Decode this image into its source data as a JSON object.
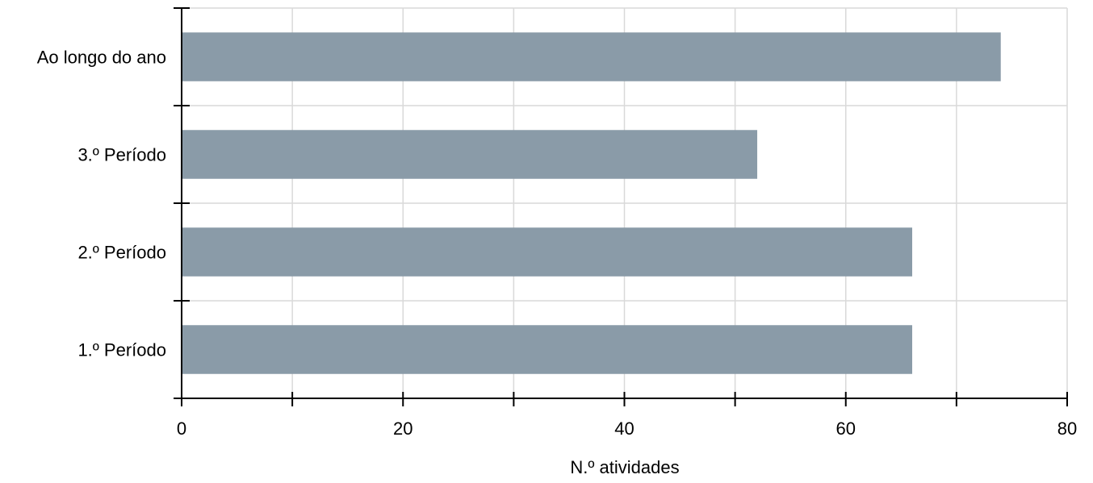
{
  "chart_data": {
    "type": "bar",
    "orientation": "horizontal",
    "categories": [
      "1.º Período",
      "2.º Período",
      "3.º Período",
      "Ao longo do ano"
    ],
    "values": [
      66,
      66,
      52,
      74
    ],
    "xlabel": "N.º atividades",
    "ylabel": "",
    "xlim": [
      0,
      80
    ],
    "x_ticks": [
      "0",
      "20",
      "40",
      "60",
      "80"
    ],
    "x_minor_ticks": [
      10,
      30,
      50,
      70
    ],
    "grid": true,
    "bar_color": "#8a9ba8",
    "grid_color": "#d9d9d9",
    "axis_color": "#000000"
  }
}
